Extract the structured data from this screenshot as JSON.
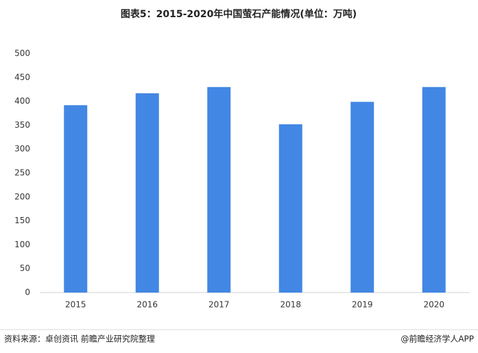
{
  "chart_data": {
    "type": "bar",
    "title": "图表5：2015-2020年中国萤石产能情况(单位：万吨)",
    "categories": [
      "2015",
      "2016",
      "2017",
      "2018",
      "2019",
      "2020"
    ],
    "values": [
      392,
      417,
      430,
      352,
      399,
      430
    ],
    "color": "#4287e4",
    "ylim": [
      0,
      500
    ],
    "yticks": [
      0,
      50,
      100,
      150,
      200,
      250,
      300,
      350,
      400,
      450,
      500
    ],
    "grid": false,
    "source": "资料来源：卓创资讯 前瞻产业研究院整理",
    "credit": "@前瞻经济学人APP"
  }
}
